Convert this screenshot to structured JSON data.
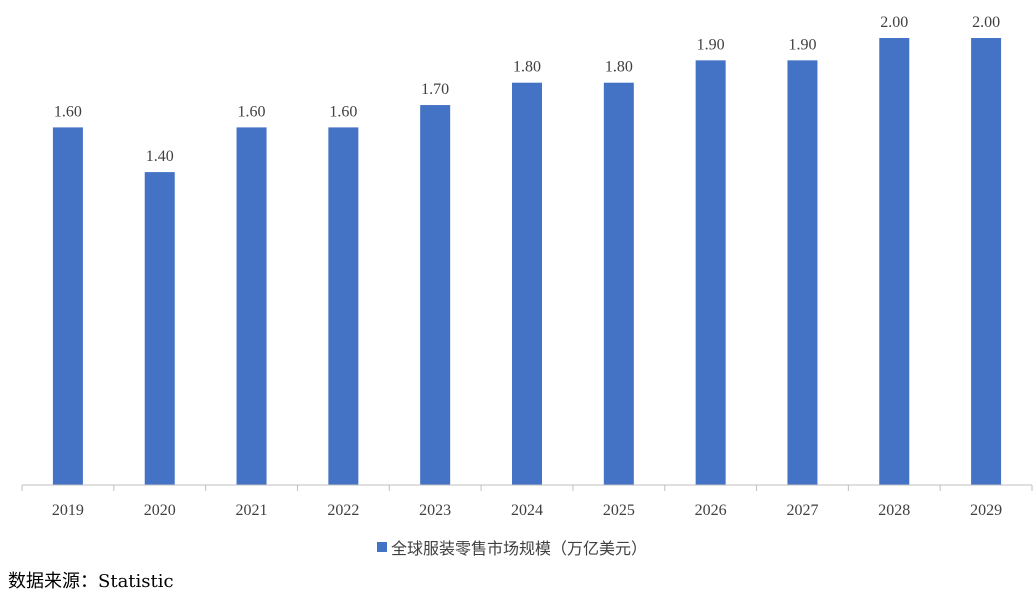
{
  "chart_data": {
    "type": "bar",
    "categories": [
      "2019",
      "2020",
      "2021",
      "2022",
      "2023",
      "2024",
      "2025",
      "2026",
      "2027",
      "2028",
      "2029"
    ],
    "series": [
      {
        "name": "全球服装零售市场规模（万亿美元）",
        "values": [
          1.6,
          1.4,
          1.6,
          1.6,
          1.7,
          1.8,
          1.8,
          1.9,
          1.9,
          2.0,
          2.0
        ],
        "labels": [
          "1.60",
          "1.40",
          "1.60",
          "1.60",
          "1.70",
          "1.80",
          "1.80",
          "1.90",
          "1.90",
          "2.00",
          "2.00"
        ]
      }
    ],
    "ylim": [
      0,
      2.0
    ],
    "y_axis_visible": false,
    "grid": false,
    "legend": "bottom-center",
    "bar_color": "#4472C4",
    "axis_color": "#BFBFBF",
    "title": "",
    "xlabel": "",
    "ylabel": ""
  },
  "legend": {
    "label": "全球服装零售市场规模（万亿美元）"
  },
  "source": {
    "text": "数据来源：Statistic"
  }
}
